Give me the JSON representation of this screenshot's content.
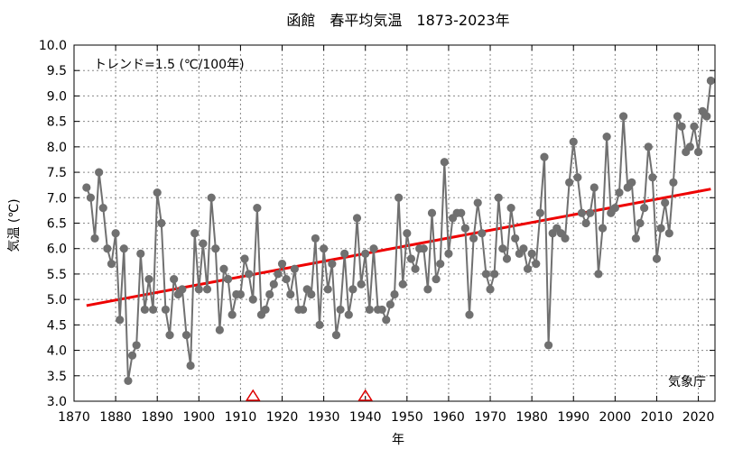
{
  "chart_data": {
    "type": "line",
    "title": "函館　春平均気温　1873-2023年",
    "xlabel": "年",
    "ylabel": "気温 (℃)",
    "xlim": [
      1870,
      2024
    ],
    "ylim": [
      3.0,
      10.0
    ],
    "x_ticks": [
      1870,
      1880,
      1890,
      1900,
      1910,
      1920,
      1930,
      1940,
      1950,
      1960,
      1970,
      1980,
      1990,
      2000,
      2010,
      2020
    ],
    "y_ticks": [
      "3.0",
      "3.5",
      "4.0",
      "4.5",
      "5.0",
      "5.5",
      "6.0",
      "6.5",
      "7.0",
      "7.5",
      "8.0",
      "8.5",
      "9.0",
      "9.5",
      "10.0"
    ],
    "grid": true,
    "trend_label": "トレンド=1.5 (℃/100年)",
    "source_label": "気象庁",
    "series": [
      {
        "color": "#707070",
        "x": [
          1873,
          1874,
          1875,
          1876,
          1877,
          1878,
          1879,
          1880,
          1881,
          1882,
          1883,
          1884,
          1885,
          1886,
          1887,
          1888,
          1889,
          1890,
          1891,
          1892,
          1893,
          1894,
          1895,
          1896,
          1897,
          1898,
          1899,
          1900,
          1901,
          1902,
          1903,
          1904,
          1905,
          1906,
          1907,
          1908,
          1909,
          1910,
          1911,
          1912,
          1913,
          1914,
          1915,
          1916,
          1917,
          1918,
          1919,
          1920,
          1921,
          1922,
          1923,
          1924,
          1925,
          1926,
          1927,
          1928,
          1929,
          1930,
          1931,
          1932,
          1933,
          1934,
          1935,
          1936,
          1937,
          1938,
          1939,
          1940,
          1941,
          1942,
          1943,
          1944,
          1945,
          1946,
          1947,
          1948,
          1949,
          1950,
          1951,
          1952,
          1953,
          1954,
          1955,
          1956,
          1957,
          1958,
          1959,
          1960,
          1961,
          1962,
          1963,
          1964,
          1965,
          1966,
          1967,
          1968,
          1969,
          1970,
          1971,
          1972,
          1973,
          1974,
          1975,
          1976,
          1977,
          1978,
          1979,
          1980,
          1981,
          1982,
          1983,
          1984,
          1985,
          1986,
          1987,
          1988,
          1989,
          1990,
          1991,
          1992,
          1993,
          1994,
          1995,
          1996,
          1997,
          1998,
          1999,
          2000,
          2001,
          2002,
          2003,
          2004,
          2005,
          2006,
          2007,
          2008,
          2009,
          2010,
          2011,
          2012,
          2013,
          2014,
          2015,
          2016,
          2017,
          2018,
          2019,
          2020,
          2021,
          2022,
          2023
        ],
        "values": [
          7.2,
          7.0,
          6.2,
          7.5,
          6.8,
          6.0,
          5.7,
          6.3,
          4.6,
          6.0,
          3.4,
          3.9,
          4.1,
          5.9,
          4.8,
          5.4,
          4.8,
          7.1,
          6.5,
          4.8,
          4.3,
          5.4,
          5.1,
          5.2,
          4.3,
          3.7,
          6.3,
          5.2,
          6.1,
          5.2,
          7.0,
          6.0,
          4.4,
          5.6,
          5.4,
          4.7,
          5.1,
          5.1,
          5.8,
          5.5,
          5.0,
          6.8,
          4.7,
          4.8,
          5.1,
          5.3,
          5.5,
          5.7,
          5.4,
          5.1,
          5.6,
          4.8,
          4.8,
          5.2,
          5.1,
          6.2,
          4.5,
          6.0,
          5.2,
          5.7,
          4.3,
          4.8,
          5.9,
          4.7,
          5.2,
          6.6,
          5.3,
          5.9,
          4.8,
          6.0,
          4.8,
          4.8,
          4.6,
          4.9,
          5.1,
          7.0,
          5.3,
          6.3,
          5.8,
          5.6,
          6.0,
          6.0,
          5.2,
          6.7,
          5.4,
          5.7,
          7.7,
          5.9,
          6.6,
          6.7,
          6.7,
          6.4,
          4.7,
          6.2,
          6.9,
          6.3,
          5.5,
          5.2,
          5.5,
          7.0,
          6.0,
          5.8,
          6.8,
          6.2,
          5.9,
          6.0,
          5.6,
          5.9,
          5.7,
          6.7,
          7.8,
          4.1,
          6.3,
          6.4,
          6.3,
          6.2,
          7.3,
          8.1,
          7.4,
          6.7,
          6.5,
          6.7,
          7.2,
          5.5,
          6.4,
          8.2,
          6.7,
          6.8,
          7.1,
          8.6,
          7.2,
          7.3,
          6.2,
          6.5,
          6.8,
          8.0,
          7.4,
          5.8,
          6.4,
          6.9,
          6.3,
          7.3,
          8.6,
          8.4,
          7.9,
          8.0,
          8.4,
          7.9,
          8.7,
          8.6,
          9.3
        ]
      }
    ],
    "trend": {
      "color": "#ee0000",
      "x": [
        1873,
        2023
      ],
      "y": [
        4.88,
        7.17
      ]
    },
    "markers": {
      "type": "triangle",
      "color": "#dd0000",
      "x": [
        1913,
        1940
      ]
    }
  }
}
